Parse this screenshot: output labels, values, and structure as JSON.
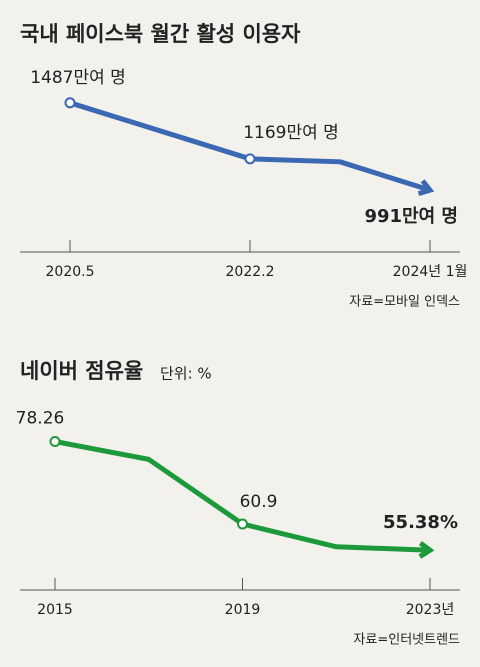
{
  "chart_data": [
    {
      "type": "line",
      "title": "국내 페이스북 월간 활성 이용자",
      "categories": [
        "2020.5",
        null,
        "2022.2",
        null,
        "2024년 1월"
      ],
      "values": [
        1487,
        1328,
        1169,
        1152,
        991
      ],
      "value_labels": [
        "1487만여 명",
        null,
        "1169만여 명",
        null,
        "991만여 명"
      ],
      "color": "#3b68b3",
      "ylim": [
        640,
        1730
      ],
      "source": "자료=모바일 인덱스"
    },
    {
      "type": "line",
      "title": "네이버 점유율",
      "subtitle": "단위: %",
      "categories": [
        "2015",
        null,
        "2019",
        null,
        "2023년"
      ],
      "values": [
        78.26,
        74.5,
        60.9,
        56.1,
        55.38
      ],
      "value_labels": [
        "78.26",
        null,
        "60.9",
        null,
        "55.38%"
      ],
      "color": "#1c9a3b",
      "ylim": [
        47,
        87
      ],
      "source": "자료=인터넷트렌드"
    }
  ]
}
